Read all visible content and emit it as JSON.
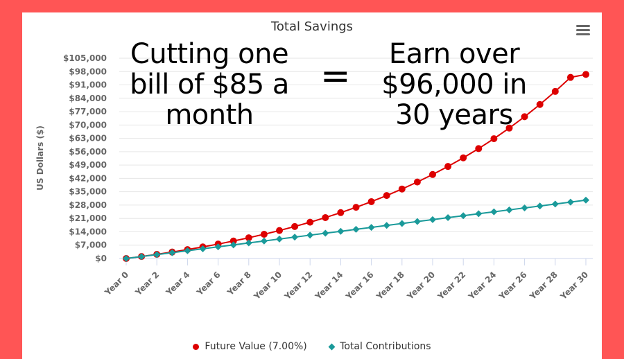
{
  "colors": {
    "background": "#ff5555",
    "card": "#ffffff",
    "future_value": "#dd0000",
    "total_contributions": "#1a9a9a",
    "gridline": "#e6e6e6",
    "axis_label": "#666666"
  },
  "overlay": {
    "left_lines": [
      "Cutting one",
      "bill of $85 a",
      "month"
    ],
    "equals": "=",
    "right_lines": [
      "Earn over",
      "$96,000 in",
      "30 years"
    ]
  },
  "menu": {
    "icon": "hamburger-menu-icon"
  },
  "legend": [
    {
      "label": "Future Value (7.00%)",
      "symbol": "circle"
    },
    {
      "label": "Total Contributions",
      "symbol": "diamond"
    }
  ],
  "chart_data": {
    "type": "line",
    "title": "Total Savings",
    "xlabel": "",
    "ylabel": "US Dollars ($)",
    "ylim": [
      0,
      105000
    ],
    "grid": true,
    "legend_position": "bottom",
    "y_ticks": [
      "$0",
      "$7,000",
      "$14,000",
      "$21,000",
      "$28,000",
      "$35,000",
      "$42,000",
      "$49,000",
      "$56,000",
      "$63,000",
      "$70,000",
      "$77,000",
      "$84,000",
      "$91,000",
      "$98,000",
      "$105,000"
    ],
    "x_tick_labels": [
      "Year 0",
      "Year 2",
      "Year 4",
      "Year 6",
      "Year 8",
      "Year 10",
      "Year 12",
      "Year 14",
      "Year 16",
      "Year 18",
      "Year 20",
      "Year 22",
      "Year 24",
      "Year 26",
      "Year 28",
      "Year 30"
    ],
    "x": [
      0,
      1,
      2,
      3,
      4,
      5,
      6,
      7,
      8,
      9,
      10,
      11,
      12,
      13,
      14,
      15,
      16,
      17,
      18,
      19,
      20,
      21,
      22,
      23,
      24,
      25,
      26,
      27,
      28,
      29,
      30
    ],
    "series": [
      {
        "name": "Future Value (7.00%)",
        "marker": "circle",
        "values": [
          0,
          1053,
          2181,
          3390,
          4686,
          6075,
          7564,
          9160,
          10871,
          12705,
          14670,
          16777,
          19035,
          21456,
          24050,
          26832,
          29813,
          33008,
          36433,
          40104,
          44038,
          48255,
          52775,
          57620,
          62813,
          68379,
          74345,
          80740,
          87594,
          94941,
          96500
        ]
      },
      {
        "name": "Total Contributions",
        "marker": "diamond",
        "values": [
          0,
          1020,
          2040,
          3060,
          4080,
          5100,
          6120,
          7140,
          8160,
          9180,
          10200,
          11220,
          12240,
          13260,
          14280,
          15300,
          16320,
          17340,
          18360,
          19380,
          20400,
          21420,
          22440,
          23460,
          24480,
          25500,
          26520,
          27540,
          28560,
          29580,
          30600
        ]
      }
    ]
  }
}
